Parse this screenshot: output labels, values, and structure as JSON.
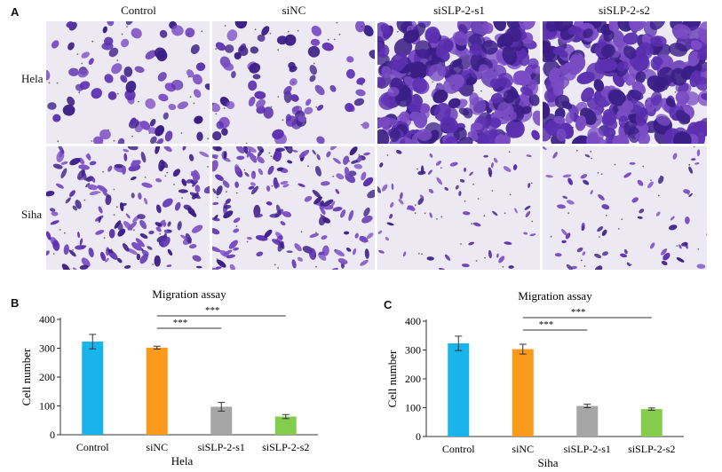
{
  "panel_a": {
    "letter": "A",
    "columns": [
      "Control",
      "siNC",
      "siSLP-2-s1",
      "siSLP-2-s2"
    ],
    "rows": [
      "Hela",
      "Siha"
    ]
  },
  "panel_b": {
    "letter": "B",
    "chart_data": {
      "type": "bar",
      "title": "Migration assay",
      "ylabel": "Cell number",
      "xlabel": "Hela",
      "categories": [
        "Control",
        "siNC",
        "siSLP-2-s1",
        "siSLP-2-s2"
      ],
      "values": [
        323,
        302,
        97,
        63
      ],
      "errors": [
        25,
        5,
        15,
        7
      ],
      "colors": [
        "#19b4ea",
        "#f99a1c",
        "#a6a6a6",
        "#84cc4c"
      ],
      "ylim": [
        0,
        400
      ],
      "yticks": [
        "0",
        "100",
        "200",
        "300",
        "400"
      ],
      "significance": [
        {
          "from": 1,
          "to": 2,
          "label": "***"
        },
        {
          "from": 1,
          "to": 3,
          "label": "***"
        }
      ]
    }
  },
  "panel_c": {
    "letter": "C",
    "chart_data": {
      "type": "bar",
      "title": "Migration assay",
      "ylabel": "Cell number",
      "xlabel": "Siha",
      "categories": [
        "Control",
        "siNC",
        "siSLP-2-s1",
        "siSLP-2-s2"
      ],
      "values": [
        323,
        303,
        106,
        95
      ],
      "errors": [
        25,
        17,
        6,
        4
      ],
      "colors": [
        "#19b4ea",
        "#f99a1c",
        "#a6a6a6",
        "#84cc4c"
      ],
      "ylim": [
        0,
        400
      ],
      "yticks": [
        "0",
        "100",
        "200",
        "300",
        "400"
      ],
      "significance": [
        {
          "from": 1,
          "to": 2,
          "label": "***"
        },
        {
          "from": 1,
          "to": 3,
          "label": "***"
        }
      ]
    }
  }
}
